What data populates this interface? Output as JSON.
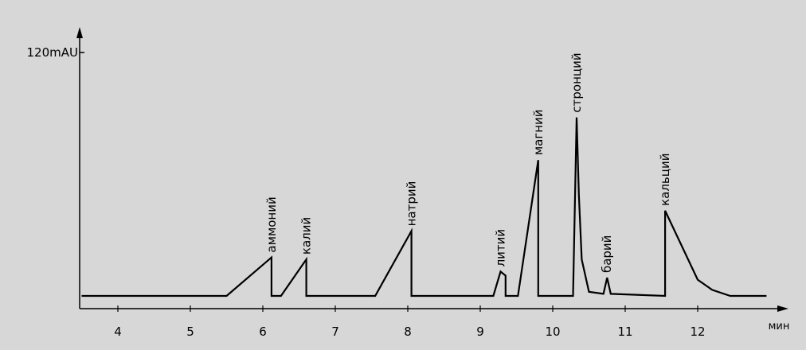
{
  "chart_data": {
    "type": "line",
    "title": "",
    "xlabel": "мин",
    "ylabel": "",
    "y_max_label": "120mAU",
    "xlim": [
      3.5,
      13.2
    ],
    "ylim": [
      0,
      120
    ],
    "x_ticks": [
      "4",
      "5",
      "6",
      "7",
      "8",
      "9",
      "10",
      "11",
      "12"
    ],
    "grid": false,
    "colors": {
      "background": "#d7d7d7",
      "line": "#000000"
    },
    "series": [
      {
        "x": [
          3.5,
          5.5,
          6.12,
          6.12,
          6.25,
          6.6,
          6.6,
          7.55,
          8.05,
          8.05,
          9.18,
          9.28,
          9.35,
          9.35,
          9.52,
          9.8,
          9.8,
          10.28,
          10.33,
          10.36,
          10.4,
          10.5,
          10.7,
          10.75,
          10.8,
          11.55,
          11.55,
          12.0,
          12.2,
          12.45,
          12.95
        ],
        "y": [
          0,
          0,
          19,
          0,
          0,
          18,
          0,
          0,
          32,
          0,
          0,
          12,
          10,
          0,
          0,
          67,
          0,
          0,
          88,
          50,
          18,
          2,
          1,
          9,
          1,
          0,
          42,
          8,
          3,
          0,
          0
        ]
      }
    ],
    "peaks": [
      {
        "label": "аммоний",
        "x": 6.12,
        "y": 19
      },
      {
        "label": "калий",
        "x": 6.6,
        "y": 18
      },
      {
        "label": "натрий",
        "x": 8.05,
        "y": 32
      },
      {
        "label": "литий",
        "x": 9.28,
        "y": 12
      },
      {
        "label": "магний",
        "x": 9.8,
        "y": 67
      },
      {
        "label": "стронций",
        "x": 10.33,
        "y": 88
      },
      {
        "label": "барий",
        "x": 10.75,
        "y": 9
      },
      {
        "label": "кальций",
        "x": 11.55,
        "y": 42
      }
    ]
  }
}
